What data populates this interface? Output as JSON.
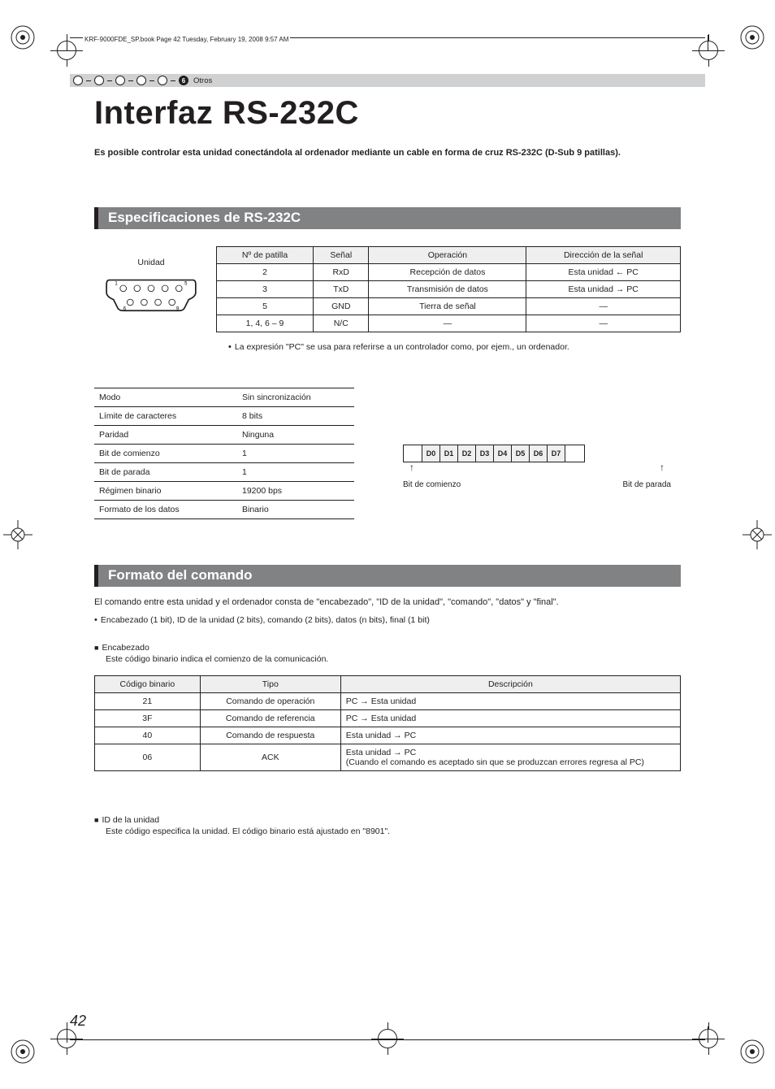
{
  "book_tag": "KRF-9000FDE_SP.book  Page 42  Tuesday, February 19, 2008  9:57 AM",
  "stripe": {
    "index": "6",
    "label": "Otros"
  },
  "title": "Interfaz RS-232C",
  "intro": "Es posible controlar esta unidad conectándola al ordenador mediante un cable en forma de cruz RS-232C (D-Sub 9 patillas).",
  "section1_title": "Especificaciones de RS-232C",
  "connector_label": "Unidad",
  "pin_table": {
    "headers": [
      "Nº de patilla",
      "Señal",
      "Operación",
      "Dirección de la señal"
    ],
    "rows": [
      {
        "pin": "2",
        "sig": "RxD",
        "op": "Recepción de datos",
        "dir_a": "Esta unidad",
        "dir_arrow": "left",
        "dir_b": "PC"
      },
      {
        "pin": "3",
        "sig": "TxD",
        "op": "Transmisión de datos",
        "dir_a": "Esta unidad",
        "dir_arrow": "right",
        "dir_b": "PC"
      },
      {
        "pin": "5",
        "sig": "GND",
        "op": "Tierra de señal",
        "dir_a": "—",
        "dir_arrow": "",
        "dir_b": ""
      },
      {
        "pin": "1, 4, 6 – 9",
        "sig": "N/C",
        "op": "—",
        "dir_a": "—",
        "dir_arrow": "",
        "dir_b": ""
      }
    ]
  },
  "pins_note": "La expresión \"PC\" se usa para referirse a un controlador como, por ejem., un ordenador.",
  "params_table": {
    "rows": [
      [
        "Modo",
        "Sin sincronización"
      ],
      [
        "Límite de caracteres",
        "8 bits"
      ],
      [
        "Paridad",
        "Ninguna"
      ],
      [
        "Bit de comienzo",
        "1"
      ],
      [
        "Bit de parada",
        "1"
      ],
      [
        "Régimen binario",
        "19200 bps"
      ],
      [
        "Formato de los datos",
        "Binario"
      ]
    ]
  },
  "frame": {
    "bits": [
      "D0",
      "D1",
      "D2",
      "D3",
      "D4",
      "D5",
      "D6",
      "D7"
    ],
    "start_label": "Bit de comienzo",
    "stop_label": "Bit de parada"
  },
  "section2_title": "Formato del comando",
  "cmd_intro": "El comando entre esta unidad y el ordenador consta de \"encabezado\", \"ID de la unidad\", \"comando\", \"datos\" y \"final\".",
  "cmd_bullet": "Encabezado (1 bit), ID de la unidad (2 bits), comando (2 bits), datos (n bits), final (1 bit)",
  "header_block": {
    "title": "Encabezado",
    "sub": "Este código binario indica el comienzo de la comunicación."
  },
  "header_table": {
    "headers": [
      "Código binario",
      "Tipo",
      "Descripción"
    ],
    "rows": [
      {
        "code": "21",
        "type": "Comando de operación",
        "desc_a": "PC",
        "arrow": "right",
        "desc_b": "Esta unidad",
        "extra": ""
      },
      {
        "code": "3F",
        "type": "Comando de referencia",
        "desc_a": "PC",
        "arrow": "right",
        "desc_b": "Esta unidad",
        "extra": ""
      },
      {
        "code": "40",
        "type": "Comando de respuesta",
        "desc_a": "Esta unidad",
        "arrow": "right",
        "desc_b": "PC",
        "extra": ""
      },
      {
        "code": "06",
        "type": "ACK",
        "desc_a": "Esta unidad",
        "arrow": "right",
        "desc_b": "PC",
        "extra": "(Cuando el comando es aceptado sin que se produzcan errores regresa al PC)"
      }
    ]
  },
  "idunit": {
    "title": "ID de la unidad",
    "sub": "Este código especifica la unidad. El código binario está ajustado en \"8901\"."
  },
  "page_number": "42",
  "colors": {
    "stripe_bg": "#cfd1d2",
    "section_bar_bg": "#818284",
    "section_bar_accent": "#231f20",
    "table_header_bg": "#efefef",
    "text": "#231f20"
  }
}
